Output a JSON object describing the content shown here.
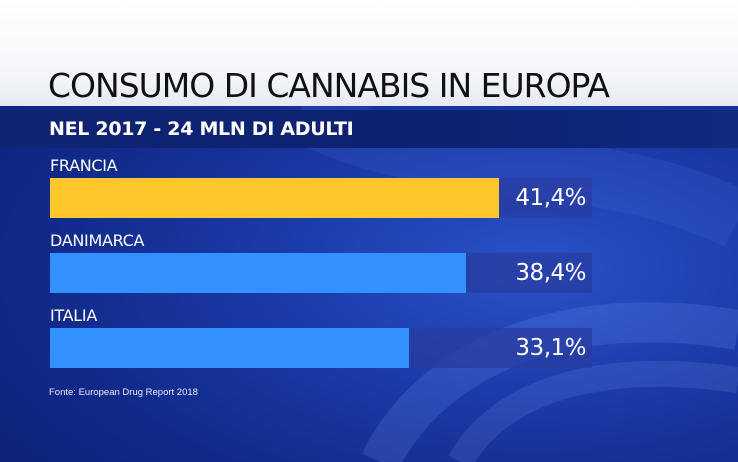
{
  "chart_data": {
    "type": "bar",
    "orientation": "horizontal",
    "title": "CONSUMO DI CANNABIS IN EUROPA",
    "subtitle": "NEL 2017 - 24 MLN DI ADULTI",
    "categories": [
      "FRANCIA",
      "DANIMARCA",
      "ITALIA"
    ],
    "values": [
      41.4,
      38.4,
      33.1
    ],
    "value_labels": [
      "41,4%",
      "38,4%",
      "33,1%"
    ],
    "xlim": [
      0,
      50
    ],
    "bar_colors": [
      "#ffc72c",
      "#3391ff",
      "#3391ff"
    ],
    "grid": false,
    "legend": "none"
  },
  "source": "Fonte: European Drug Report 2018",
  "colors": {
    "background": "#112a8a",
    "track": "#283ca0",
    "highlight": "#ffc72c",
    "bar": "#3391ff"
  }
}
